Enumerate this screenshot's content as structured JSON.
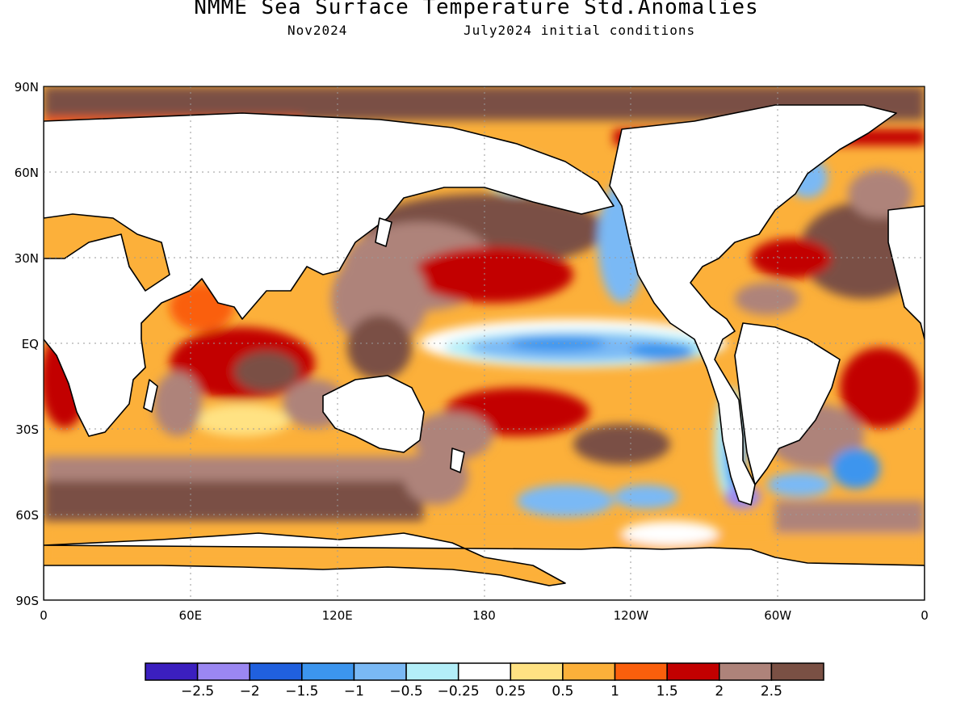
{
  "header": {
    "title": "NMME Sea Surface Temperature Std.Anomalies",
    "valid_month": "Nov2024",
    "init_conditions": "July2024 initial conditions"
  },
  "map": {
    "projection": "equirectangular",
    "lon_range": [
      0,
      360
    ],
    "lat_range": [
      -90,
      90
    ],
    "lat_ticks": [
      {
        "lat": 90,
        "label": "90N"
      },
      {
        "lat": 60,
        "label": "60N"
      },
      {
        "lat": 30,
        "label": "30N"
      },
      {
        "lat": 0,
        "label": "EQ"
      },
      {
        "lat": -30,
        "label": "30S"
      },
      {
        "lat": -60,
        "label": "60S"
      },
      {
        "lat": -90,
        "label": "90S"
      }
    ],
    "lon_ticks": [
      {
        "lon": 0,
        "label": "0"
      },
      {
        "lon": 60,
        "label": "60E"
      },
      {
        "lon": 120,
        "label": "120E"
      },
      {
        "lon": 180,
        "label": "180"
      },
      {
        "lon": 240,
        "label": "120W"
      },
      {
        "lon": 300,
        "label": "60W"
      },
      {
        "lon": 360,
        "label": "0"
      }
    ],
    "grid": true,
    "ocean_base_color": "#fcb03a",
    "land_color": "#ffffff",
    "coastline_color": "#000000"
  },
  "colorbar": {
    "bins": [
      {
        "color": "#3b1fbf"
      },
      {
        "color": "#9b87f2"
      },
      {
        "color": "#2060de"
      },
      {
        "color": "#3c95ee"
      },
      {
        "color": "#7ab9f5"
      },
      {
        "color": "#b3eef8"
      },
      {
        "color": "#ffffff"
      },
      {
        "color": "#ffe283"
      },
      {
        "color": "#fcb03a"
      },
      {
        "color": "#fa5f0c"
      },
      {
        "color": "#c20000"
      },
      {
        "color": "#ae837a"
      },
      {
        "color": "#7a5044"
      }
    ],
    "labels": [
      "-2.5",
      "-2",
      "-1.5",
      "-1",
      "-0.5",
      "-0.25",
      "0.25",
      "0.5",
      "1",
      "1.5",
      "2",
      "2.5"
    ]
  }
}
